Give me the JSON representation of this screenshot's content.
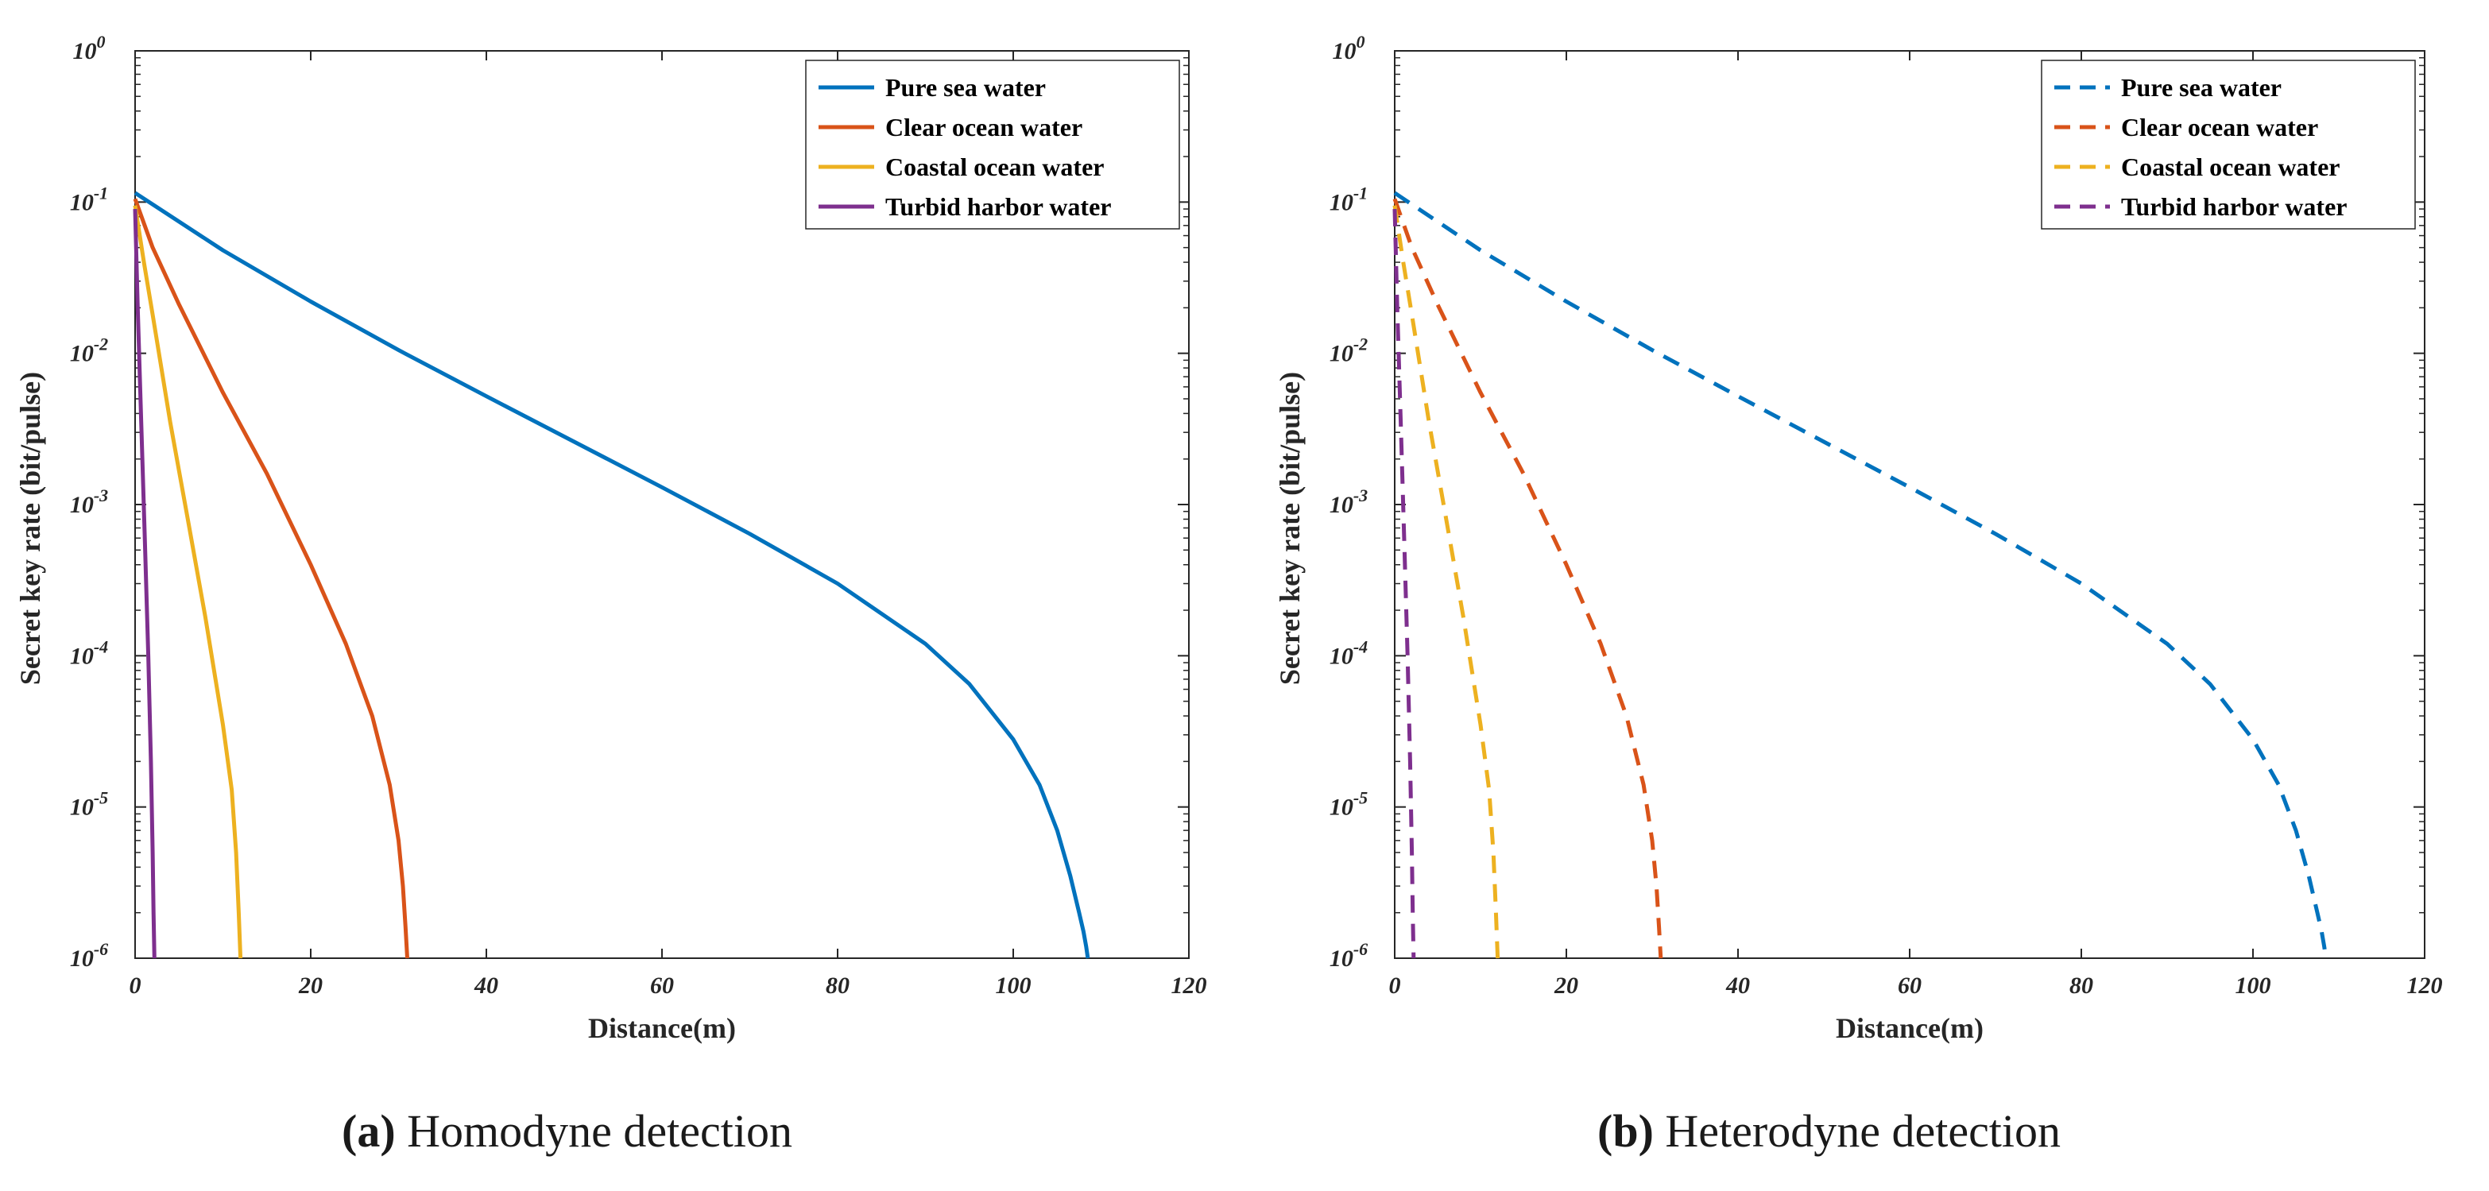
{
  "chart_data": [
    {
      "type": "line",
      "panel_label": "a",
      "caption": "Homodyne detection",
      "xlabel": "Distance(m)",
      "ylabel": "Secret key rate (bit/pulse)",
      "xlim": [
        0,
        120
      ],
      "ylim": [
        1e-06,
        1
      ],
      "yscale": "log",
      "x_ticks": [
        "0",
        "20",
        "40",
        "60",
        "80",
        "100",
        "120"
      ],
      "y_tick_mantissa": [
        "10",
        "10",
        "10",
        "10",
        "10",
        "10",
        "10"
      ],
      "y_tick_exponents": [
        "0",
        "-1",
        "-2",
        "-3",
        "-4",
        "-5",
        "-6"
      ],
      "line_style": "solid",
      "legend_position": "top-right",
      "series": [
        {
          "name": "Pure sea water",
          "color": "#0072BD",
          "x": [
            0,
            10,
            20,
            30,
            40,
            50,
            60,
            70,
            80,
            90,
            95,
            100,
            103,
            105,
            106.5,
            107.5,
            108,
            108.3,
            108.5
          ],
          "y": [
            0.115,
            0.048,
            0.022,
            0.0105,
            0.0052,
            0.0026,
            0.0013,
            0.00064,
            0.0003,
            0.00012,
            6.5e-05,
            2.8e-05,
            1.4e-05,
            7e-06,
            3.5e-06,
            2e-06,
            1.5e-06,
            1.2e-06,
            1e-06
          ]
        },
        {
          "name": "Clear ocean water",
          "color": "#D95319",
          "x": [
            0,
            2,
            5,
            10,
            15,
            20,
            24,
            27,
            29,
            30,
            30.5,
            30.8,
            31
          ],
          "y": [
            0.105,
            0.05,
            0.021,
            0.0055,
            0.0016,
            0.0004,
            0.00012,
            4e-05,
            1.4e-05,
            6e-06,
            3e-06,
            1.6e-06,
            1e-06
          ]
        },
        {
          "name": "Coastal ocean water",
          "color": "#EDB120",
          "x": [
            0,
            1,
            2,
            4,
            6,
            8,
            10,
            11,
            11.5,
            11.8,
            12
          ],
          "y": [
            0.095,
            0.04,
            0.018,
            0.0035,
            0.0008,
            0.00018,
            3.5e-05,
            1.3e-05,
            5e-06,
            2e-06,
            1e-06
          ]
        },
        {
          "name": "Turbid harbor water",
          "color": "#7E2F8E",
          "x": [
            0,
            0.3,
            0.7,
            1.1,
            1.5,
            1.8,
            2,
            2.1,
            2.2
          ],
          "y": [
            0.09,
            0.02,
            0.0035,
            0.0006,
            0.0001,
            2e-05,
            5e-06,
            2e-06,
            1e-06
          ]
        }
      ]
    },
    {
      "type": "line",
      "panel_label": "b",
      "caption": "Heterodyne detection",
      "xlabel": "Distance(m)",
      "ylabel": "Secret key rate (bit/pulse)",
      "xlim": [
        0,
        120
      ],
      "ylim": [
        1e-06,
        1
      ],
      "yscale": "log",
      "x_ticks": [
        "0",
        "20",
        "40",
        "60",
        "80",
        "100",
        "120"
      ],
      "y_tick_mantissa": [
        "10",
        "10",
        "10",
        "10",
        "10",
        "10",
        "10"
      ],
      "y_tick_exponents": [
        "0",
        "-1",
        "-2",
        "-3",
        "-4",
        "-5",
        "-6"
      ],
      "line_style": "dashed",
      "legend_position": "top-right",
      "series": [
        {
          "name": "Pure sea water",
          "color": "#0072BD",
          "x": [
            0,
            10,
            20,
            30,
            40,
            50,
            60,
            70,
            80,
            90,
            95,
            100,
            103,
            105,
            106.5,
            107.5,
            108,
            108.3,
            108.5
          ],
          "y": [
            0.115,
            0.048,
            0.022,
            0.0105,
            0.0052,
            0.0026,
            0.0013,
            0.00064,
            0.0003,
            0.00012,
            6.5e-05,
            2.8e-05,
            1.4e-05,
            7e-06,
            3.5e-06,
            2e-06,
            1.5e-06,
            1.2e-06,
            1e-06
          ]
        },
        {
          "name": "Clear ocean water",
          "color": "#D95319",
          "x": [
            0,
            2,
            5,
            10,
            15,
            20,
            24,
            27,
            29,
            30,
            30.5,
            30.8,
            31
          ],
          "y": [
            0.105,
            0.05,
            0.021,
            0.0055,
            0.0016,
            0.0004,
            0.00012,
            4e-05,
            1.4e-05,
            6e-06,
            3e-06,
            1.6e-06,
            1e-06
          ]
        },
        {
          "name": "Coastal ocean water",
          "color": "#EDB120",
          "x": [
            0,
            1,
            2,
            4,
            6,
            8,
            10,
            11,
            11.5,
            11.8,
            12
          ],
          "y": [
            0.095,
            0.04,
            0.018,
            0.0035,
            0.0008,
            0.00018,
            3.5e-05,
            1.3e-05,
            5e-06,
            2e-06,
            1e-06
          ]
        },
        {
          "name": "Turbid harbor water",
          "color": "#7E2F8E",
          "x": [
            0,
            0.3,
            0.7,
            1.1,
            1.5,
            1.8,
            2,
            2.1,
            2.2
          ],
          "y": [
            0.09,
            0.02,
            0.0035,
            0.0006,
            0.0001,
            2e-05,
            5e-06,
            2e-06,
            1e-06
          ]
        }
      ]
    }
  ]
}
